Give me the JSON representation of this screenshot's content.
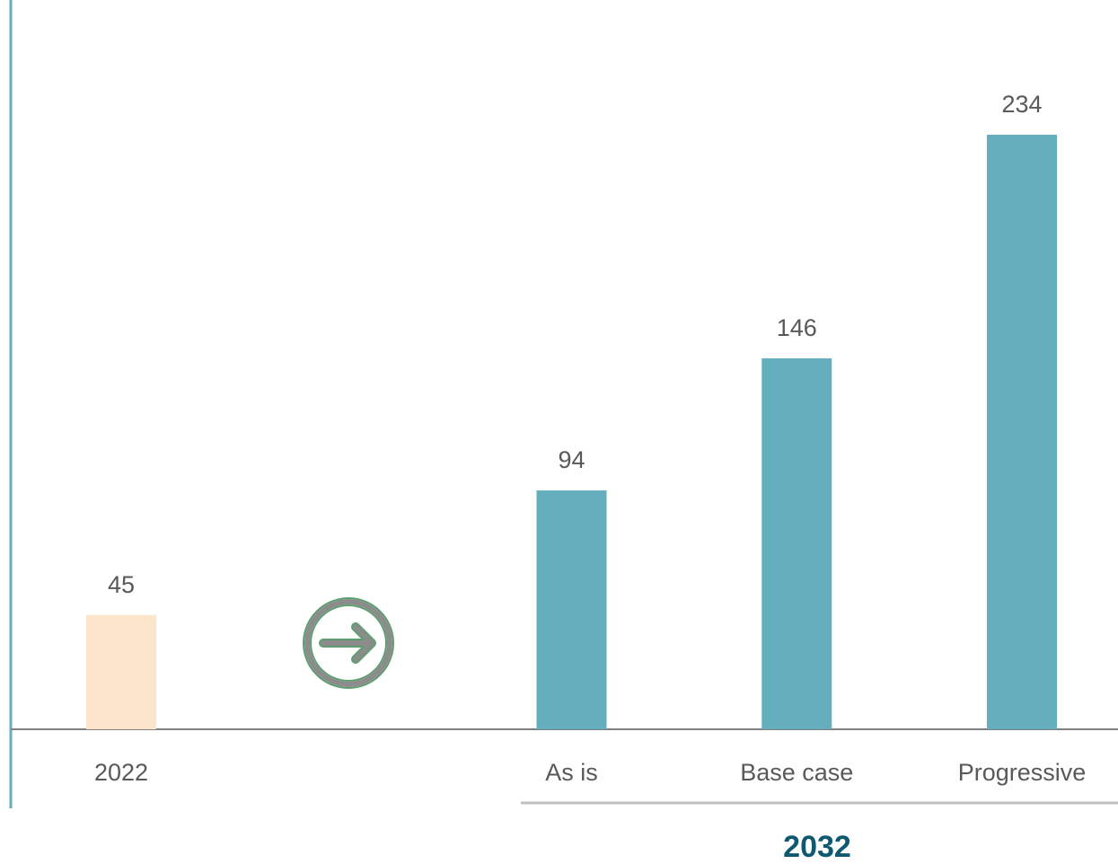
{
  "chart_data": {
    "type": "bar",
    "categories": [
      "2022",
      null,
      "As is",
      "Base case",
      "Progressive"
    ],
    "values": [
      45,
      null,
      94,
      146,
      234
    ],
    "colors": [
      "#fde5cc",
      null,
      "#64aebd",
      "#64aebd",
      "#64aebd"
    ],
    "group_label": "2032"
  }
}
